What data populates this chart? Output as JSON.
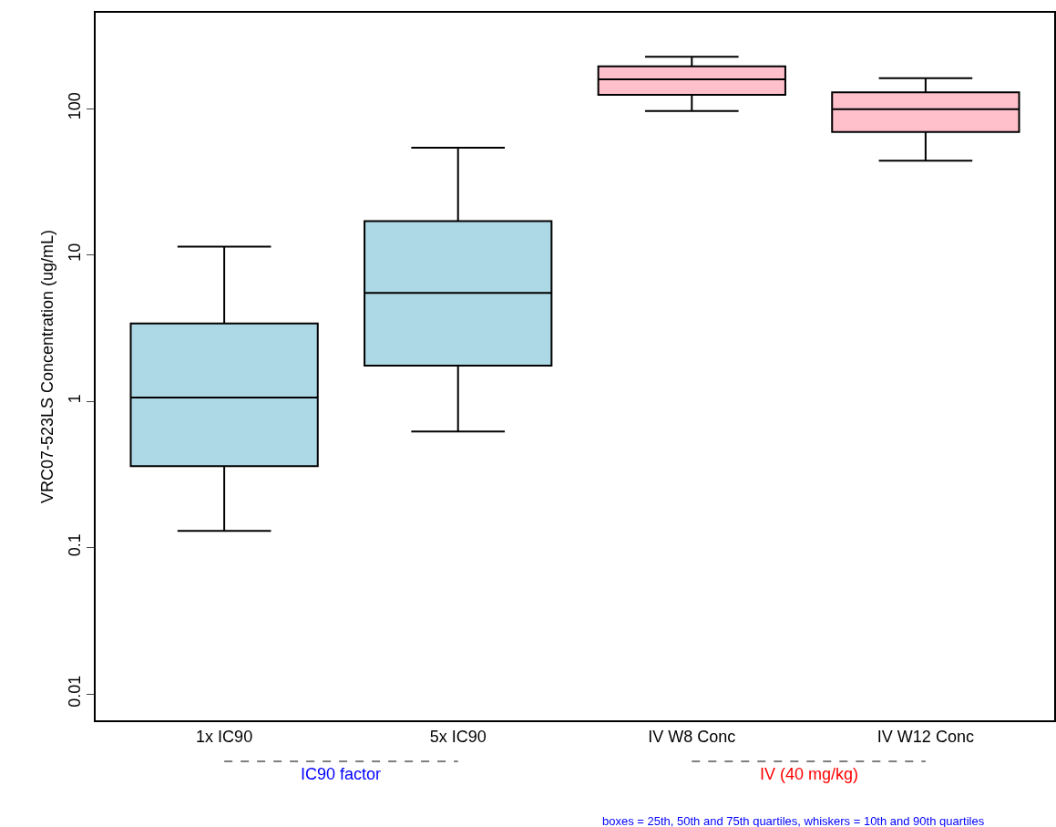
{
  "chart_data": {
    "type": "box",
    "ylabel": "VRC07-523LS Concentration (ug/mL)",
    "categories": [
      "1x IC90",
      "5x IC90",
      "IV W8 Conc",
      "IV W12 Conc"
    ],
    "colors": [
      "#add8e6",
      "#add8e6",
      "#ffc0cb",
      "#ffc0cb"
    ],
    "boxes": [
      {
        "low": 0.13,
        "q1": 0.36,
        "median": 1.06,
        "q3": 3.4,
        "high": 11.4
      },
      {
        "low": 0.62,
        "q1": 1.75,
        "median": 5.5,
        "q3": 17,
        "high": 54
      },
      {
        "low": 96,
        "q1": 124,
        "median": 158,
        "q3": 194,
        "high": 226
      },
      {
        "low": 44,
        "q1": 69,
        "median": 99,
        "q3": 129,
        "high": 161
      }
    ],
    "log": "y",
    "ylim": [
      0.0066,
      451
    ],
    "yticks": [
      0.01,
      0.1,
      1,
      10,
      100
    ],
    "grid": false,
    "annotations": [
      "IC90 factor",
      "IV (40 mg/kg)",
      "boxes = 25th, 50th and 75th quartiles, whiskers = 10th and 90th quartiles"
    ]
  }
}
